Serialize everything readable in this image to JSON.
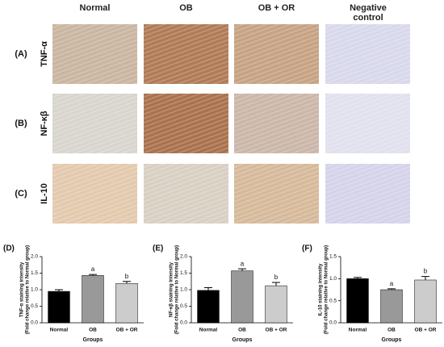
{
  "figure": {
    "columns": [
      "Normal",
      "OB",
      "OB + OR",
      "Negative control"
    ],
    "rows": [
      {
        "label": "(A)",
        "marker": "TNF-α"
      },
      {
        "label": "(B)",
        "marker": "NF-κβ"
      },
      {
        "label": "(C)",
        "marker": "IL-10"
      }
    ]
  },
  "chart_data": [
    {
      "type": "bar",
      "panel": "(D)",
      "y_label": "TNF-α staining intensity",
      "y_sublabel": "(Fold change relative to Normal group)",
      "x_label": "Groups",
      "categories": [
        "Normal",
        "OB",
        "OB + OR"
      ],
      "values": [
        0.95,
        1.43,
        1.19
      ],
      "errors": [
        0.05,
        0.03,
        0.06
      ],
      "annotations": [
        null,
        "a",
        "b"
      ],
      "colors": [
        "#000000",
        "#999999",
        "#cccccc"
      ],
      "ylim": [
        0,
        2
      ],
      "yticks": [
        {
          "value": 0,
          "label": "0.0"
        },
        {
          "value": 0.5,
          "label": "0.5"
        },
        {
          "value": 1,
          "label": "1.0"
        },
        {
          "value": 1.5,
          "label": "1.5"
        },
        {
          "value": 2,
          "label": "2.0"
        }
      ]
    },
    {
      "type": "bar",
      "panel": "(E)",
      "y_label": "NF-κβ staining intensity",
      "y_sublabel": "(Fold change relative to Normal group)",
      "x_label": "Groups",
      "categories": [
        "Normal",
        "OB",
        "OB + OR"
      ],
      "values": [
        0.98,
        1.57,
        1.12
      ],
      "errors": [
        0.08,
        0.06,
        0.1
      ],
      "annotations": [
        null,
        "a",
        "b"
      ],
      "colors": [
        "#000000",
        "#999999",
        "#cccccc"
      ],
      "ylim": [
        0,
        2
      ],
      "yticks": [
        {
          "value": 0,
          "label": "0.0"
        },
        {
          "value": 0.5,
          "label": "0.5"
        },
        {
          "value": 1,
          "label": "1.0"
        },
        {
          "value": 1.5,
          "label": "1.5"
        },
        {
          "value": 2,
          "label": "2.0"
        }
      ]
    },
    {
      "type": "bar",
      "panel": "(F)",
      "y_label": "IL-10 staining intensity",
      "y_sublabel": "(Fold change relative to Normal group)",
      "x_label": "Groups",
      "categories": [
        "Normal",
        "OB",
        "OB + OR"
      ],
      "values": [
        1.0,
        0.75,
        0.97
      ],
      "errors": [
        0.03,
        0.02,
        0.08
      ],
      "annotations": [
        null,
        "a",
        "b"
      ],
      "colors": [
        "#000000",
        "#999999",
        "#cccccc"
      ],
      "ylim": [
        0,
        1.5
      ],
      "yticks": [
        {
          "value": 0,
          "label": "0.0"
        },
        {
          "value": 0.5,
          "label": "0.5"
        },
        {
          "value": 1,
          "label": "1.0"
        },
        {
          "value": 1.5,
          "label": "1.5"
        }
      ]
    }
  ]
}
